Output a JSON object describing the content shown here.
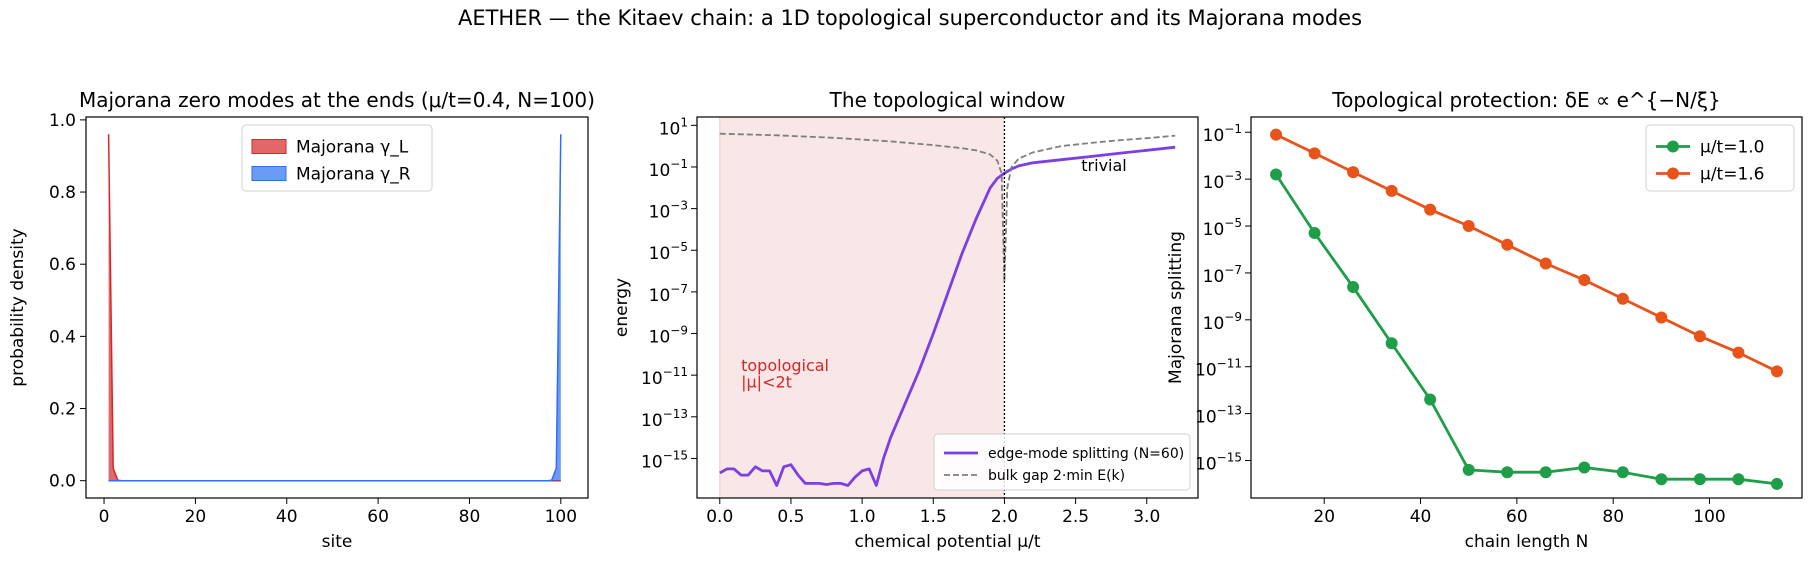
{
  "suptitle": "AETHER — the Kitaev chain: a 1D topological superconductor and its Majorana modes",
  "chart_data": [
    {
      "type": "area",
      "title": "Majorana zero modes at the ends (μ/t=0.4, N=100)",
      "xlabel": "site",
      "ylabel": "probability density",
      "xlim": [
        -3.95,
        105.95
      ],
      "ylim": [
        -0.048,
        1.008
      ],
      "xticks": [
        0,
        20,
        40,
        60,
        80,
        100
      ],
      "yticks": [
        0.0,
        0.2,
        0.4,
        0.6,
        0.8,
        1.0
      ],
      "ytick_labels": [
        "0.0",
        "0.2",
        "0.4",
        "0.6",
        "0.8",
        "1.0"
      ],
      "grid": false,
      "legend_loc": "upper center",
      "series": [
        {
          "name": "Majorana γ_L",
          "color": "#d62728",
          "x": [
            1,
            2,
            3,
            4,
            5,
            6,
            100
          ],
          "y": [
            0.96,
            0.035,
            0.001,
            0.0,
            0.0,
            0.0,
            0.0
          ]
        },
        {
          "name": "Majorana γ_R",
          "color": "#2f6ff0",
          "x": [
            1,
            95,
            96,
            97,
            98,
            99,
            100
          ],
          "y": [
            0.0,
            0.0,
            0.0,
            0.0,
            0.001,
            0.035,
            0.96
          ]
        }
      ]
    },
    {
      "type": "line",
      "title": "The topological window",
      "xlabel": "chemical potential  μ/t",
      "ylabel": "energy",
      "yscale": "log",
      "xlim": [
        -0.16,
        3.36
      ],
      "ylim_exp": [
        -16.9,
        1.4
      ],
      "xticks": [
        0.0,
        0.5,
        1.0,
        1.5,
        2.0,
        2.5,
        3.0
      ],
      "xtick_labels": [
        "0.0",
        "0.5",
        "1.0",
        "1.5",
        "2.0",
        "2.5",
        "3.0"
      ],
      "yticks_exp": [
        -15,
        -13,
        -11,
        -9,
        -7,
        -5,
        -3,
        -1,
        1
      ],
      "grid": false,
      "legend_loc": "lower right",
      "shaded_region": {
        "x": [
          0.0,
          2.0
        ],
        "color": "#f9e6e6"
      },
      "vline": 2.0,
      "annotations": [
        {
          "text": [
            "topological",
            "|μ|<2t"
          ],
          "x": 0.15,
          "y_exp": [
            -10.8,
            -11.6
          ],
          "color": "#d62728"
        },
        {
          "text": [
            "trivial"
          ],
          "x": 2.54,
          "y_exp": [
            -1.2
          ],
          "color": "#000000"
        }
      ],
      "series": [
        {
          "name": "edge-mode splitting (N=60)",
          "color": "#7b3fe4",
          "style": "solid",
          "x": [
            0.0,
            0.05,
            0.1,
            0.15,
            0.2,
            0.25,
            0.3,
            0.35,
            0.4,
            0.45,
            0.5,
            0.55,
            0.6,
            0.65,
            0.7,
            0.75,
            0.8,
            0.85,
            0.9,
            0.95,
            1.0,
            1.05,
            1.1,
            1.15,
            1.2,
            1.3,
            1.4,
            1.5,
            1.6,
            1.7,
            1.8,
            1.9,
            1.95,
            2.0,
            2.05,
            2.1,
            2.2,
            2.4,
            2.6,
            2.8,
            3.0,
            3.2
          ],
          "y_exp": [
            -15.7,
            -15.5,
            -15.5,
            -15.8,
            -15.8,
            -15.4,
            -15.6,
            -15.6,
            -16.3,
            -15.4,
            -15.3,
            -15.8,
            -16.2,
            -16.2,
            -16.2,
            -16.25,
            -16.2,
            -16.2,
            -16.3,
            -15.9,
            -15.6,
            -15.5,
            -16.3,
            -15.0,
            -14.0,
            -12.4,
            -10.8,
            -9.0,
            -7.1,
            -5.2,
            -3.5,
            -2.0,
            -1.55,
            -1.3,
            -1.1,
            -0.95,
            -0.8,
            -0.65,
            -0.5,
            -0.35,
            -0.2,
            -0.05
          ]
        },
        {
          "name": "bulk gap 2·min E(k)",
          "color": "#7f7f7f",
          "style": "dashed",
          "x": [
            0.0,
            0.4,
            0.8,
            1.2,
            1.5,
            1.7,
            1.8,
            1.9,
            1.95,
            1.98,
            2.0,
            2.02,
            2.05,
            2.1,
            2.2,
            2.4,
            2.6,
            2.8,
            3.0,
            3.2
          ],
          "y_exp": [
            0.6,
            0.52,
            0.4,
            0.23,
            0.05,
            -0.1,
            -0.2,
            -0.4,
            -0.7,
            -1.3,
            -6.5,
            -2.0,
            -1.0,
            -0.6,
            -0.3,
            0.0,
            0.15,
            0.28,
            0.38,
            0.5
          ]
        }
      ]
    },
    {
      "type": "line",
      "title": "Topological protection: δE ∝ e^{−N/ξ}",
      "xlabel": "chain length  N",
      "ylabel": "Majorana splitting",
      "yscale": "log",
      "xlim": [
        4.8,
        119.2
      ],
      "ylim_exp": [
        -16.6,
        -0.35
      ],
      "xticks": [
        20,
        40,
        60,
        80,
        100
      ],
      "yticks_exp": [
        -15,
        -13,
        -11,
        -9,
        -7,
        -5,
        -3,
        -1
      ],
      "grid": false,
      "legend_loc": "upper right",
      "series": [
        {
          "name": "μ/t=1.0",
          "color": "#1f9e4a",
          "marker": "circle",
          "x": [
            10,
            18,
            26,
            34,
            42,
            50,
            58,
            66,
            74,
            82,
            90,
            98,
            106,
            114
          ],
          "y_exp": [
            -2.8,
            -5.3,
            -7.6,
            -10.0,
            -12.4,
            -15.4,
            -15.5,
            -15.5,
            -15.3,
            -15.5,
            -15.8,
            -15.8,
            -15.8,
            -16.0
          ]
        },
        {
          "name": "μ/t=1.6",
          "color": "#e8531a",
          "marker": "circle",
          "x": [
            10,
            18,
            26,
            34,
            42,
            50,
            58,
            66,
            74,
            82,
            90,
            98,
            106,
            114
          ],
          "y_exp": [
            -1.1,
            -1.9,
            -2.7,
            -3.5,
            -4.3,
            -5.0,
            -5.8,
            -6.6,
            -7.3,
            -8.1,
            -8.9,
            -9.7,
            -10.4,
            -11.2
          ]
        }
      ]
    }
  ]
}
